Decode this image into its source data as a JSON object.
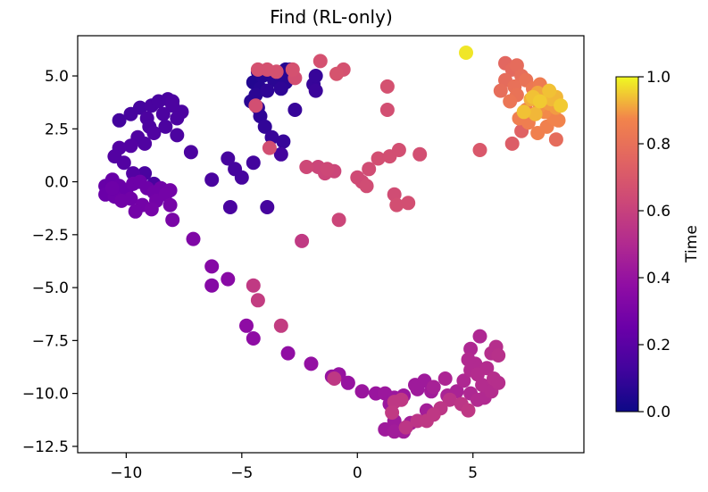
{
  "chart_data": {
    "type": "scatter",
    "title": "Find (RL-only)",
    "xlabel": "",
    "ylabel": "",
    "xlim": [
      -12.1,
      9.8
    ],
    "ylim": [
      -12.8,
      6.9
    ],
    "x_ticks": [
      -10,
      -5,
      0,
      5
    ],
    "x_tick_labels": [
      "−10",
      "−5",
      "0",
      "5"
    ],
    "y_ticks": [
      5.0,
      2.5,
      0.0,
      -2.5,
      -5.0,
      -7.5,
      -10.0,
      -12.5
    ],
    "y_tick_labels": [
      "5.0",
      "2.5",
      "0.0",
      "−2.5",
      "−5.0",
      "−7.5",
      "−10.0",
      "−12.5"
    ],
    "grid": false,
    "colormap": "plasma",
    "colorbar": {
      "label": "Time",
      "range": [
        0.0,
        1.0
      ],
      "ticks": [
        0.0,
        0.2,
        0.4,
        0.6,
        0.8,
        1.0
      ],
      "tick_labels": [
        "0.0",
        "0.2",
        "0.4",
        "0.6",
        "0.8",
        "1.0"
      ]
    },
    "points": [
      [
        -4.3,
        5.2,
        0.05
      ],
      [
        -4.1,
        5.0,
        0.06
      ],
      [
        -4.5,
        4.7,
        0.05
      ],
      [
        -4.2,
        4.4,
        0.06
      ],
      [
        -4.4,
        4.1,
        0.07
      ],
      [
        -4.6,
        3.8,
        0.07
      ],
      [
        -4.3,
        3.5,
        0.08
      ],
      [
        -4.2,
        3.1,
        0.08
      ],
      [
        -4.0,
        2.6,
        0.09
      ],
      [
        -3.7,
        2.1,
        0.1
      ],
      [
        -3.2,
        1.9,
        0.1
      ],
      [
        -3.1,
        5.3,
        0.06
      ],
      [
        -2.9,
        5.3,
        0.06
      ],
      [
        -3.3,
        5.0,
        0.07
      ],
      [
        -3.1,
        4.7,
        0.07
      ],
      [
        -3.3,
        4.4,
        0.08
      ],
      [
        -3.6,
        4.8,
        0.07
      ],
      [
        -3.9,
        4.3,
        0.08
      ],
      [
        -1.9,
        4.6,
        0.1
      ],
      [
        -1.8,
        4.3,
        0.11
      ],
      [
        -1.8,
        5.0,
        0.1
      ],
      [
        -2.7,
        3.4,
        0.1
      ],
      [
        -10.3,
        2.9,
        0.13
      ],
      [
        -9.8,
        3.2,
        0.14
      ],
      [
        -9.4,
        3.5,
        0.14
      ],
      [
        -8.9,
        3.6,
        0.15
      ],
      [
        -8.6,
        3.8,
        0.15
      ],
      [
        -8.2,
        3.9,
        0.15
      ],
      [
        -8.0,
        3.8,
        0.16
      ],
      [
        -7.6,
        3.3,
        0.16
      ],
      [
        -8.4,
        3.2,
        0.16
      ],
      [
        -9.1,
        3.0,
        0.16
      ],
      [
        -8.8,
        2.3,
        0.17
      ],
      [
        -9.5,
        2.1,
        0.17
      ],
      [
        -9.2,
        1.8,
        0.17
      ],
      [
        -9.8,
        1.7,
        0.18
      ],
      [
        -10.3,
        1.6,
        0.18
      ],
      [
        -10.5,
        1.2,
        0.18
      ],
      [
        -10.1,
        0.9,
        0.18
      ],
      [
        -9.7,
        0.4,
        0.18
      ],
      [
        -7.8,
        2.2,
        0.16
      ],
      [
        -7.2,
        1.4,
        0.16
      ],
      [
        -8.3,
        2.6,
        0.16
      ],
      [
        -9.0,
        2.6,
        0.16
      ],
      [
        -8.0,
        3.6,
        0.16
      ],
      [
        -7.8,
        3.0,
        0.16
      ],
      [
        -6.3,
        0.1,
        0.15
      ],
      [
        -5.6,
        1.1,
        0.14
      ],
      [
        -5.3,
        0.6,
        0.14
      ],
      [
        -5.0,
        0.2,
        0.14
      ],
      [
        -4.5,
        0.9,
        0.13
      ],
      [
        -3.3,
        1.3,
        0.13
      ],
      [
        -5.5,
        -1.2,
        0.15
      ],
      [
        -3.9,
        -1.2,
        0.14
      ],
      [
        -9.2,
        0.4,
        0.15
      ],
      [
        -8.8,
        -0.1,
        0.15
      ],
      [
        -10.9,
        -0.2,
        0.24
      ],
      [
        -10.6,
        0.1,
        0.24
      ],
      [
        -10.3,
        -0.2,
        0.25
      ],
      [
        -10.0,
        -0.4,
        0.25
      ],
      [
        -9.7,
        -0.1,
        0.26
      ],
      [
        -9.4,
        0.0,
        0.26
      ],
      [
        -9.1,
        -0.3,
        0.26
      ],
      [
        -8.8,
        -0.5,
        0.27
      ],
      [
        -8.5,
        -0.3,
        0.27
      ],
      [
        -8.1,
        -0.4,
        0.28
      ],
      [
        -8.7,
        -0.9,
        0.28
      ],
      [
        -9.3,
        -1.1,
        0.28
      ],
      [
        -9.8,
        -0.8,
        0.27
      ],
      [
        -10.5,
        -0.7,
        0.26
      ],
      [
        -10.9,
        -0.6,
        0.25
      ],
      [
        -9.6,
        -1.4,
        0.28
      ],
      [
        -8.9,
        -1.3,
        0.29
      ],
      [
        -8.1,
        -1.1,
        0.29
      ],
      [
        -8.3,
        -0.6,
        0.28
      ],
      [
        -10.2,
        -0.9,
        0.27
      ],
      [
        -10.6,
        -0.3,
        0.26
      ],
      [
        -8.0,
        -1.8,
        0.3
      ],
      [
        -7.1,
        -2.7,
        0.32
      ],
      [
        -6.3,
        -4.0,
        0.34
      ],
      [
        -6.3,
        -4.9,
        0.34
      ],
      [
        -5.6,
        -4.6,
        0.35
      ],
      [
        -4.8,
        -6.8,
        0.37
      ],
      [
        -4.5,
        -7.4,
        0.37
      ],
      [
        -3.0,
        -8.1,
        0.38
      ],
      [
        -2.0,
        -8.6,
        0.39
      ],
      [
        -1.1,
        -9.2,
        0.4
      ],
      [
        -0.8,
        -9.1,
        0.4
      ],
      [
        -0.4,
        -9.5,
        0.4
      ],
      [
        0.2,
        -9.9,
        0.41
      ],
      [
        0.8,
        -10.0,
        0.41
      ],
      [
        1.2,
        -10.0,
        0.42
      ],
      [
        1.6,
        -10.2,
        0.42
      ],
      [
        2.0,
        -10.1,
        0.42
      ],
      [
        2.5,
        -9.6,
        0.43
      ],
      [
        2.9,
        -9.4,
        0.43
      ],
      [
        2.6,
        -9.8,
        0.43
      ],
      [
        3.2,
        -9.9,
        0.44
      ],
      [
        1.4,
        -10.5,
        0.42
      ],
      [
        1.6,
        -11.3,
        0.43
      ],
      [
        1.2,
        -11.7,
        0.43
      ],
      [
        1.6,
        -11.8,
        0.44
      ],
      [
        2.0,
        -11.8,
        0.44
      ],
      [
        2.3,
        -11.4,
        0.45
      ],
      [
        3.0,
        -10.8,
        0.45
      ],
      [
        3.3,
        -9.7,
        0.46
      ],
      [
        3.9,
        -10.1,
        0.47
      ],
      [
        4.3,
        -9.9,
        0.47
      ],
      [
        3.8,
        -9.3,
        0.48
      ],
      [
        4.6,
        -9.4,
        0.49
      ],
      [
        4.9,
        -10.0,
        0.49
      ],
      [
        5.2,
        -10.3,
        0.5
      ],
      [
        5.5,
        -10.2,
        0.5
      ],
      [
        5.7,
        -9.7,
        0.51
      ],
      [
        5.9,
        -9.3,
        0.52
      ],
      [
        6.1,
        -9.5,
        0.52
      ],
      [
        5.4,
        -9.6,
        0.51
      ],
      [
        5.1,
        -8.6,
        0.5
      ],
      [
        4.9,
        -8.9,
        0.5
      ],
      [
        4.8,
        -8.4,
        0.5
      ],
      [
        4.9,
        -7.9,
        0.49
      ],
      [
        5.3,
        -7.3,
        0.49
      ],
      [
        5.8,
        -8.1,
        0.52
      ],
      [
        6.0,
        -7.8,
        0.52
      ],
      [
        6.1,
        -8.2,
        0.53
      ],
      [
        5.6,
        -8.8,
        0.51
      ],
      [
        5.2,
        -9.1,
        0.51
      ],
      [
        5.8,
        -9.9,
        0.51
      ],
      [
        4.0,
        -10.3,
        0.54
      ],
      [
        4.5,
        -10.5,
        0.55
      ],
      [
        3.6,
        -10.7,
        0.55
      ],
      [
        3.3,
        -11.0,
        0.56
      ],
      [
        3.0,
        -11.3,
        0.56
      ],
      [
        2.6,
        -11.3,
        0.55
      ],
      [
        2.1,
        -11.6,
        0.55
      ],
      [
        1.6,
        -10.4,
        0.56
      ],
      [
        1.5,
        -10.9,
        0.57
      ],
      [
        1.9,
        -10.3,
        0.56
      ],
      [
        -1.0,
        -9.3,
        0.56
      ],
      [
        -2.4,
        -2.8,
        0.57
      ],
      [
        -4.5,
        -4.9,
        0.57
      ],
      [
        -4.3,
        -5.6,
        0.58
      ],
      [
        -3.3,
        -6.8,
        0.58
      ],
      [
        4.8,
        -10.8,
        0.56
      ],
      [
        -0.8,
        -1.8,
        0.62
      ],
      [
        -1.0,
        0.5,
        0.62
      ],
      [
        -1.3,
        0.6,
        0.63
      ],
      [
        -1.7,
        0.7,
        0.62
      ],
      [
        -2.2,
        0.7,
        0.63
      ],
      [
        -1.4,
        0.4,
        0.62
      ],
      [
        0.0,
        0.2,
        0.64
      ],
      [
        0.2,
        0.0,
        0.64
      ],
      [
        0.4,
        -0.2,
        0.65
      ],
      [
        0.5,
        0.6,
        0.65
      ],
      [
        0.9,
        1.1,
        0.66
      ],
      [
        1.4,
        1.2,
        0.66
      ],
      [
        1.6,
        -0.6,
        0.65
      ],
      [
        1.7,
        -1.1,
        0.66
      ],
      [
        2.2,
        -1.0,
        0.66
      ],
      [
        1.8,
        1.5,
        0.66
      ],
      [
        2.7,
        1.3,
        0.66
      ],
      [
        1.3,
        3.4,
        0.66
      ],
      [
        1.3,
        4.5,
        0.67
      ],
      [
        -0.6,
        5.3,
        0.67
      ],
      [
        -1.6,
        5.7,
        0.67
      ],
      [
        -0.9,
        5.1,
        0.68
      ],
      [
        -2.8,
        5.3,
        0.67
      ],
      [
        -3.5,
        5.2,
        0.67
      ],
      [
        -3.9,
        5.3,
        0.67
      ],
      [
        -4.3,
        5.3,
        0.67
      ],
      [
        -2.7,
        4.9,
        0.66
      ],
      [
        -4.4,
        3.6,
        0.66
      ],
      [
        -3.8,
        1.6,
        0.66
      ],
      [
        5.3,
        1.5,
        0.7
      ],
      [
        6.7,
        1.8,
        0.72
      ],
      [
        7.1,
        2.4,
        0.74
      ],
      [
        8.6,
        2.0,
        0.78
      ],
      [
        6.4,
        5.6,
        0.76
      ],
      [
        6.7,
        5.3,
        0.77
      ],
      [
        6.9,
        5.5,
        0.78
      ],
      [
        7.1,
        5.0,
        0.79
      ],
      [
        6.4,
        4.8,
        0.78
      ],
      [
        6.2,
        4.3,
        0.79
      ],
      [
        6.8,
        4.5,
        0.8
      ],
      [
        7.3,
        4.8,
        0.81
      ],
      [
        6.9,
        4.1,
        0.81
      ],
      [
        6.6,
        3.8,
        0.82
      ],
      [
        7.6,
        4.4,
        0.83
      ],
      [
        7.9,
        4.6,
        0.84
      ],
      [
        7.3,
        3.4,
        0.84
      ],
      [
        7.0,
        3.0,
        0.85
      ],
      [
        7.4,
        2.8,
        0.85
      ],
      [
        7.8,
        2.3,
        0.86
      ],
      [
        8.2,
        2.6,
        0.86
      ],
      [
        8.5,
        3.0,
        0.87
      ],
      [
        8.7,
        2.9,
        0.87
      ],
      [
        8.1,
        3.3,
        0.88
      ],
      [
        7.9,
        3.6,
        0.89
      ],
      [
        8.3,
        3.7,
        0.9
      ],
      [
        8.6,
        3.5,
        0.9
      ],
      [
        8.1,
        4.1,
        0.91
      ],
      [
        7.8,
        4.2,
        0.91
      ],
      [
        7.5,
        3.9,
        0.92
      ],
      [
        8.6,
        4.0,
        0.93
      ],
      [
        8.4,
        3.9,
        0.93
      ],
      [
        7.7,
        3.2,
        0.93
      ],
      [
        7.2,
        3.3,
        0.94
      ],
      [
        8.3,
        4.3,
        0.94
      ],
      [
        7.6,
        4.0,
        0.94
      ],
      [
        8.8,
        3.6,
        0.95
      ],
      [
        7.9,
        3.8,
        0.95
      ],
      [
        4.7,
        6.1,
        0.98
      ]
    ]
  }
}
